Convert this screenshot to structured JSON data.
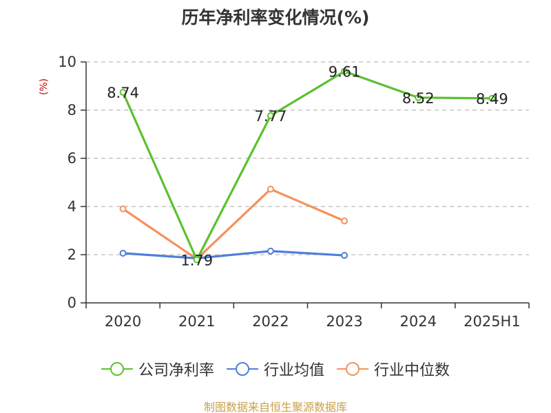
{
  "chart_data": {
    "type": "line",
    "title": "历年净利率变化情况(%)",
    "ylabel": "(%)",
    "xlabel": "",
    "categories": [
      "2020",
      "2021",
      "2022",
      "2023",
      "2024",
      "2025H1"
    ],
    "ylim": [
      0,
      10
    ],
    "yticks": [
      0,
      2,
      4,
      6,
      8,
      10
    ],
    "grid": true,
    "legend_position": "bottom",
    "series": [
      {
        "name": "公司净利率",
        "color": "#5ac12e",
        "values": [
          8.74,
          1.79,
          7.77,
          9.61,
          8.52,
          8.49
        ],
        "labels": [
          "8.74",
          "1.79",
          "7.77",
          "9.61",
          "8.52",
          "8.49"
        ]
      },
      {
        "name": "行业均值",
        "color": "#4e7fd9",
        "values": [
          2.06,
          1.85,
          2.15,
          1.97,
          null,
          null
        ]
      },
      {
        "name": "行业中位数",
        "color": "#f5915a",
        "values": [
          3.9,
          1.82,
          4.72,
          3.4,
          null,
          null
        ]
      }
    ],
    "source_note": "制图数据来自恒生聚源数据库"
  },
  "colors": {
    "axis": "#333333",
    "grid": "#bbbbbb",
    "ylabel": "#cc0000",
    "source": "#c8a04a"
  }
}
